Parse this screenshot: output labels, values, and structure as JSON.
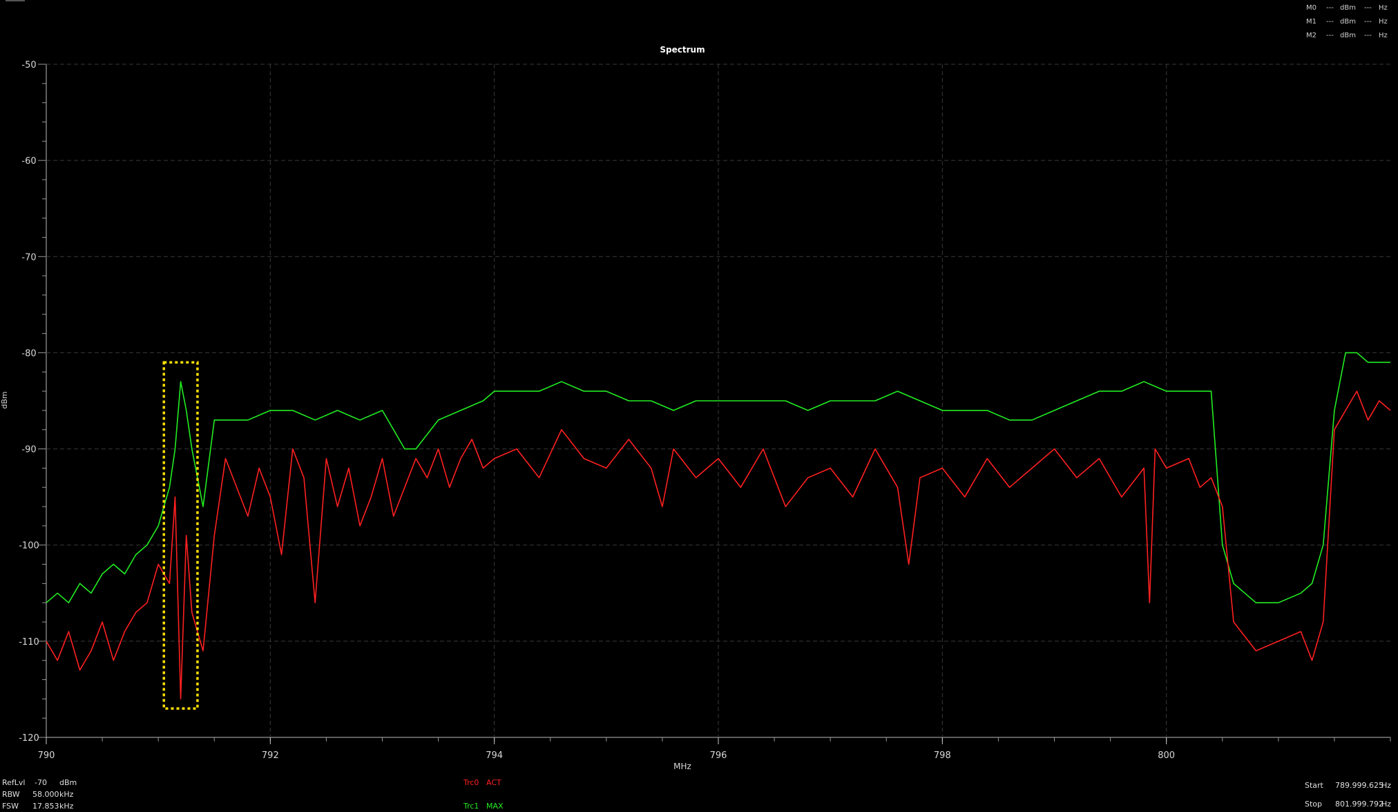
{
  "chart_data": {
    "type": "line",
    "title": "Spectrum",
    "xlabel": "MHz",
    "ylabel": "dBm",
    "xlim": [
      790,
      802
    ],
    "ylim": [
      -120,
      -50
    ],
    "x_ticks": [
      790,
      792,
      794,
      796,
      798,
      800
    ],
    "x_tick_labels": [
      "790",
      "792",
      "794",
      "796",
      "798",
      "800"
    ],
    "y_ticks": [
      -50,
      -60,
      -70,
      -80,
      -90,
      -100,
      -110,
      -120
    ],
    "y_tick_labels": [
      "-50",
      "-60",
      "-70",
      "-80",
      "-90",
      "-100",
      "-110",
      "-120"
    ],
    "grid": true,
    "series": [
      {
        "name": "Trc0",
        "color": "#ff2020",
        "x": [
          790.0,
          790.1,
          790.2,
          790.3,
          790.4,
          790.5,
          790.6,
          790.7,
          790.8,
          790.9,
          791.0,
          791.1,
          791.15,
          791.2,
          791.25,
          791.3,
          791.4,
          791.5,
          791.6,
          791.7,
          791.8,
          791.9,
          792.0,
          792.1,
          792.2,
          792.3,
          792.4,
          792.5,
          792.6,
          792.7,
          792.8,
          792.9,
          793.0,
          793.1,
          793.2,
          793.3,
          793.4,
          793.5,
          793.6,
          793.7,
          793.8,
          793.9,
          794.0,
          794.2,
          794.4,
          794.6,
          794.8,
          795.0,
          795.2,
          795.4,
          795.5,
          795.6,
          795.8,
          796.0,
          796.2,
          796.4,
          796.6,
          796.8,
          797.0,
          797.2,
          797.4,
          797.6,
          797.7,
          797.8,
          798.0,
          798.2,
          798.4,
          798.6,
          798.8,
          799.0,
          799.2,
          799.4,
          799.6,
          799.8,
          799.85,
          799.9,
          800.0,
          800.2,
          800.3,
          800.4,
          800.5,
          800.6,
          800.8,
          801.0,
          801.2,
          801.3,
          801.4,
          801.5,
          801.6,
          801.7,
          801.8,
          801.9,
          802.0
        ],
        "values": [
          -110,
          -112,
          -109,
          -113,
          -111,
          -108,
          -112,
          -109,
          -107,
          -106,
          -102,
          -104,
          -95,
          -116,
          -99,
          -107,
          -111,
          -99,
          -91,
          -94,
          -97,
          -92,
          -95,
          -101,
          -90,
          -93,
          -106,
          -91,
          -96,
          -92,
          -98,
          -95,
          -91,
          -97,
          -94,
          -91,
          -93,
          -90,
          -94,
          -91,
          -89,
          -92,
          -91,
          -90,
          -93,
          -88,
          -91,
          -92,
          -89,
          -92,
          -96,
          -90,
          -93,
          -91,
          -94,
          -90,
          -96,
          -93,
          -92,
          -95,
          -90,
          -94,
          -102,
          -93,
          -92,
          -95,
          -91,
          -94,
          -92,
          -90,
          -93,
          -91,
          -95,
          -92,
          -106,
          -90,
          -92,
          -91,
          -94,
          -93,
          -96,
          -108,
          -111,
          -110,
          -109,
          -112,
          -108,
          -88,
          -86,
          -84,
          -87,
          -85,
          -86
        ]
      },
      {
        "name": "Trc1",
        "color": "#22ee22",
        "x": [
          790.0,
          790.1,
          790.2,
          790.3,
          790.4,
          790.5,
          790.6,
          790.7,
          790.8,
          790.9,
          791.0,
          791.1,
          791.15,
          791.2,
          791.25,
          791.3,
          791.4,
          791.5,
          791.6,
          791.8,
          792.0,
          792.2,
          792.4,
          792.6,
          792.8,
          793.0,
          793.1,
          793.2,
          793.3,
          793.5,
          793.7,
          793.9,
          794.0,
          794.2,
          794.4,
          794.6,
          794.8,
          795.0,
          795.2,
          795.4,
          795.6,
          795.8,
          796.0,
          796.2,
          796.4,
          796.6,
          796.8,
          797.0,
          797.2,
          797.4,
          797.6,
          797.8,
          798.0,
          798.2,
          798.4,
          798.6,
          798.8,
          799.0,
          799.2,
          799.4,
          799.6,
          799.8,
          800.0,
          800.2,
          800.4,
          800.5,
          800.6,
          800.7,
          800.8,
          801.0,
          801.2,
          801.3,
          801.4,
          801.5,
          801.6,
          801.7,
          801.8,
          801.9,
          802.0
        ],
        "values": [
          -106,
          -105,
          -106,
          -104,
          -105,
          -103,
          -102,
          -103,
          -101,
          -100,
          -98,
          -94,
          -90,
          -83,
          -86,
          -90,
          -96,
          -87,
          -87,
          -87,
          -86,
          -86,
          -87,
          -86,
          -87,
          -86,
          -88,
          -90,
          -90,
          -87,
          -86,
          -85,
          -84,
          -84,
          -84,
          -83,
          -84,
          -84,
          -85,
          -85,
          -86,
          -85,
          -85,
          -85,
          -85,
          -85,
          -86,
          -85,
          -85,
          -85,
          -84,
          -85,
          -86,
          -86,
          -86,
          -87,
          -87,
          -86,
          -85,
          -84,
          -84,
          -83,
          -84,
          -84,
          -84,
          -100,
          -104,
          -105,
          -106,
          -106,
          -105,
          -104,
          -100,
          -86,
          -80,
          -80,
          -81,
          -81,
          -81
        ]
      }
    ],
    "annotations": [
      {
        "type": "dashed-box",
        "color": "#ffe000",
        "x_range": [
          791.05,
          791.35
        ],
        "y_range": [
          -117,
          -81
        ]
      }
    ]
  },
  "markers": [
    {
      "name": "M0",
      "value": "---",
      "unit": "dBm",
      "freq": "---",
      "freq_unit": "Hz"
    },
    {
      "name": "M1",
      "value": "---",
      "unit": "dBm",
      "freq": "---",
      "freq_unit": "Hz"
    },
    {
      "name": "M2",
      "value": "---",
      "unit": "dBm",
      "freq": "---",
      "freq_unit": "Hz"
    }
  ],
  "settings": {
    "ref_label": "RefLvl",
    "ref_value": "-70",
    "ref_unit": "dBm",
    "rbw_label": "RBW",
    "rbw_value": "58.000",
    "rbw_unit": "kHz",
    "fsw_label": "FSW",
    "fsw_value": "17.853",
    "fsw_unit": "kHz"
  },
  "traces": [
    {
      "name": "Trc0",
      "mode": "ACT",
      "color": "#ff2020"
    },
    {
      "name": "Trc1",
      "mode": "MAX",
      "color": "#22ee22"
    }
  ],
  "range": {
    "start_label": "Start",
    "start_value": "789.999.625",
    "start_unit": "Hz",
    "stop_label": "Stop",
    "stop_value": "801.999.792",
    "stop_unit": "Hz"
  }
}
